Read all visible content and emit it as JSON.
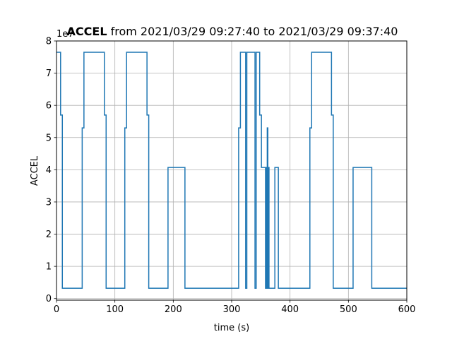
{
  "chart_data": {
    "type": "line",
    "title_bold": "ACCEL",
    "title_rest": " from 2021/03/29 09:27:40 to 2021/03/29 09:37:40",
    "xlabel": "time (s)",
    "ylabel": "ACCEL",
    "y_offset_label": "1e7",
    "xlim": [
      0,
      600
    ],
    "ylim": [
      -0.05,
      8.0
    ],
    "x_ticks": [
      0,
      100,
      200,
      300,
      400,
      500,
      600
    ],
    "y_ticks": [
      0,
      1,
      2,
      3,
      4,
      5,
      6,
      7,
      8
    ],
    "y_unit_multiplier": 10000000,
    "grid": true,
    "line_color": "#1f77b4",
    "series": [
      {
        "step": "post",
        "x": [
          0,
          7,
          10,
          44,
          47,
          82,
          85,
          117,
          120,
          155,
          158,
          191,
          220,
          312,
          315,
          318,
          324,
          326,
          340,
          342,
          348,
          351,
          358,
          359,
          360,
          361,
          362,
          363,
          364,
          365,
          366,
          373,
          374,
          377,
          380,
          434,
          437,
          471,
          474,
          508,
          540,
          600
        ],
        "y": [
          7.65,
          5.7,
          0.32,
          5.3,
          7.65,
          5.7,
          0.32,
          5.3,
          7.65,
          5.7,
          0.32,
          4.07,
          0.32,
          5.3,
          7.65,
          7.65,
          0.32,
          7.65,
          0.32,
          7.65,
          5.7,
          4.07,
          0.32,
          4.07,
          0.32,
          5.3,
          0.32,
          4.07,
          0.32,
          0.32,
          0.32,
          0.32,
          4.07,
          4.07,
          0.32,
          5.3,
          7.65,
          5.7,
          0.32,
          4.07,
          0.32,
          0.32
        ]
      }
    ]
  }
}
